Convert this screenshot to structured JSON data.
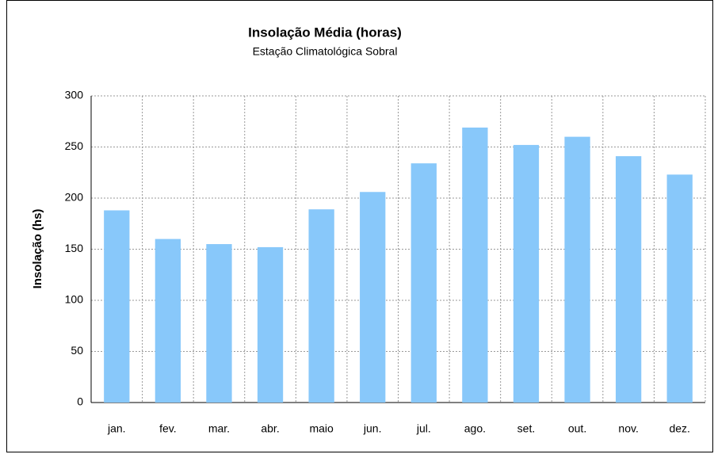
{
  "chart_data": {
    "type": "bar",
    "title": "Insolação Média (horas)",
    "subtitle": "Estação Climatológica Sobral",
    "y_label": "Insolação (hs)",
    "categories": [
      "jan.",
      "fev.",
      "mar.",
      "abr.",
      "maio",
      "jun.",
      "jul.",
      "ago.",
      "set.",
      "out.",
      "nov.",
      "dez."
    ],
    "values": [
      188,
      160,
      155,
      152,
      189,
      206,
      234,
      269,
      252,
      260,
      241,
      223
    ],
    "color": "#88c8fa",
    "ylim": [
      0,
      300
    ],
    "yticks": [
      0,
      50,
      100,
      150,
      200,
      250,
      300
    ],
    "grid": true
  }
}
